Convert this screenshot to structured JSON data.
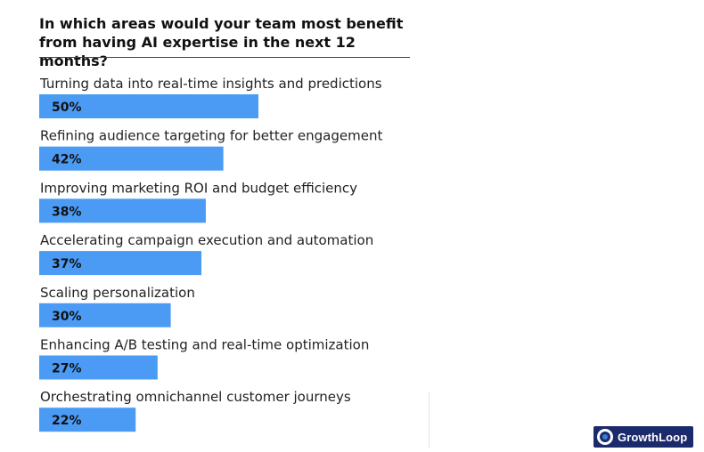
{
  "chart_data": {
    "type": "bar",
    "orientation": "horizontal",
    "title": "In which areas would your team most benefit from having AI expertise in the next 12 months?",
    "categories": [
      "Turning data into real-time insights and predictions",
      "Refining audience targeting for better engagement",
      "Improving marketing ROI and budget efficiency",
      "Accelerating campaign execution and automation",
      "Scaling personalization",
      "Enhancing A/B testing and real-time optimization",
      "Orchestrating omnichannel customer journeys"
    ],
    "values": [
      50,
      42,
      38,
      37,
      30,
      27,
      22
    ],
    "value_labels": [
      "50%",
      "42%",
      "38%",
      "37%",
      "30%",
      "27%",
      "22%"
    ],
    "unit": "%",
    "xlim": [
      0,
      100
    ],
    "grid": false,
    "legend": "none",
    "bar_color": "#4b9bf5"
  },
  "brand": {
    "name": "GrowthLoop",
    "color": "#1b2a6b",
    "icon": "growthloop-logo-icon"
  }
}
